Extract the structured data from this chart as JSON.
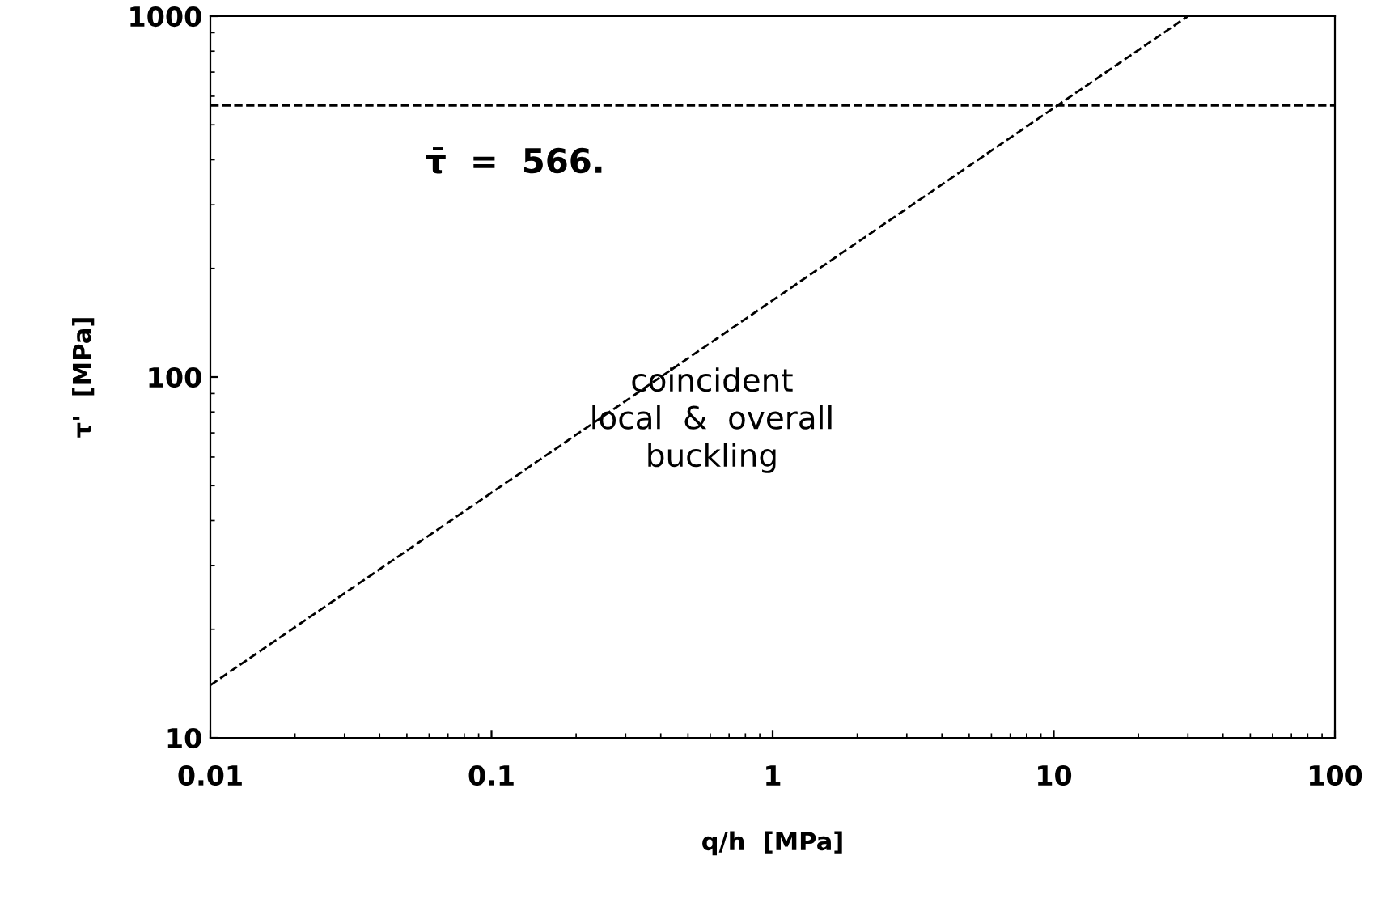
{
  "chart_data": {
    "type": "line",
    "xlabel": "q/h  [MPa]",
    "ylabel": "τ'  [MPa]",
    "log": "xy",
    "xlim": [
      0.01,
      100
    ],
    "ylim": [
      10,
      1000
    ],
    "xticks": [
      0.01,
      0.1,
      1,
      10,
      100
    ],
    "yticks": [
      10,
      100,
      1000
    ],
    "grid": false,
    "legend": false,
    "line_style": "dashed",
    "marker": "none",
    "series": [
      {
        "color": "#000000",
        "x": [
          0.01,
          30
        ],
        "values": [
          14,
          1000
        ]
      }
    ],
    "ref_lines": [
      {
        "axis": "y",
        "value": 566,
        "label": "τ̄  =  566.",
        "color": "#000000",
        "line_style": "dashed"
      }
    ],
    "annotations": [
      "coincident\nlocal  &  overall\nbuckling"
    ]
  }
}
